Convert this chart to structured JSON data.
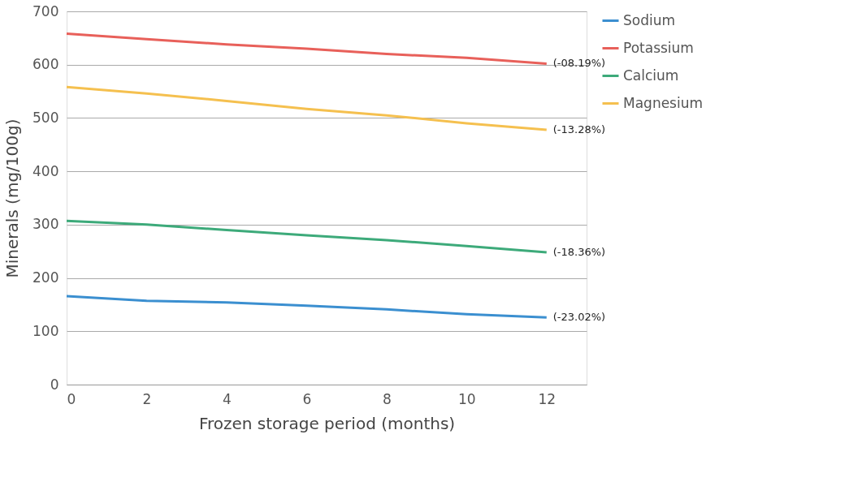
{
  "chart_data": {
    "type": "line",
    "xlabel": "Frozen storage period (months)",
    "ylabel": "Minerals (mg/100g)",
    "x": [
      0,
      2,
      4,
      6,
      8,
      10,
      12
    ],
    "series": [
      {
        "name": "Sodium",
        "color": "#3b8fd0",
        "values": [
          166,
          157,
          154,
          148,
          141,
          132,
          126
        ]
      },
      {
        "name": "Potassium",
        "color": "#e8605a",
        "values": [
          658,
          648,
          638,
          630,
          620,
          613,
          602
        ]
      },
      {
        "name": "Calcium",
        "color": "#3daa7a",
        "values": [
          307,
          300,
          290,
          280,
          271,
          260,
          248
        ]
      },
      {
        "name": "Magnesium",
        "color": "#f5c04f",
        "values": [
          558,
          546,
          532,
          517,
          505,
          490,
          478
        ]
      }
    ],
    "xlim": [
      0,
      13
    ],
    "xticks": [
      0,
      2,
      4,
      6,
      8,
      10,
      12
    ],
    "ylim": [
      0,
      700
    ],
    "yticks": [
      0,
      100,
      200,
      300,
      400,
      500,
      600,
      700
    ],
    "grid": "y",
    "legend": "right",
    "marker": "none",
    "line_style": "solid",
    "annotations": [
      "(-23.02%)",
      "(-08.19%)",
      "(-18.36%)",
      "(-13.28%)"
    ]
  }
}
